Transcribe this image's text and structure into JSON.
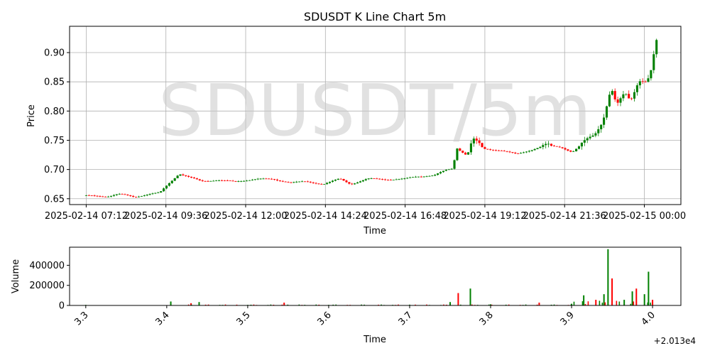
{
  "chart_data": [
    {
      "type": "candlestick",
      "title": "SDUSDT K Line Chart 5m",
      "xlabel": "Time",
      "ylabel": "Price",
      "watermark": "SDUSDT/5m",
      "grid": true,
      "up_color": "#008000",
      "down_color": "#ff0000",
      "ylim": [
        0.64,
        0.945
      ],
      "yticks": [
        0.65,
        0.7,
        0.75,
        0.8,
        0.85,
        0.9
      ],
      "ytick_labels": [
        "0.65",
        "0.70",
        "0.75",
        "0.80",
        "0.85",
        "0.90"
      ],
      "xlim": [
        "2025-02-14 06:42",
        "2025-02-15 01:06"
      ],
      "xticks": [
        "2025-02-14 07:12",
        "2025-02-14 09:36",
        "2025-02-14 12:00",
        "2025-02-14 14:24",
        "2025-02-14 16:48",
        "2025-02-14 19:12",
        "2025-02-14 21:36",
        "2025-02-15 00:00"
      ],
      "xtick_labels": [
        "2025-02-14 07:12",
        "2025-02-14 09:36",
        "2025-02-14 12:00",
        "2025-02-14 14:24",
        "2025-02-14 16:48",
        "2025-02-14 19:12",
        "2025-02-14 21:36",
        "2025-02-15 00:00"
      ],
      "price_keypoints": [
        [
          "2025-02-14 07:12",
          0.655
        ],
        [
          "2025-02-14 07:50",
          0.654
        ],
        [
          "2025-02-14 08:10",
          0.658
        ],
        [
          "2025-02-14 08:40",
          0.653
        ],
        [
          "2025-02-14 09:05",
          0.658
        ],
        [
          "2025-02-14 09:25",
          0.66
        ],
        [
          "2025-02-14 09:40",
          0.675
        ],
        [
          "2025-02-14 10:00",
          0.693
        ],
        [
          "2025-02-14 10:20",
          0.686
        ],
        [
          "2025-02-14 10:40",
          0.68
        ],
        [
          "2025-02-14 11:10",
          0.682
        ],
        [
          "2025-02-14 11:40",
          0.679
        ],
        [
          "2025-02-14 12:20",
          0.684
        ],
        [
          "2025-02-14 12:50",
          0.683
        ],
        [
          "2025-02-14 13:20",
          0.678
        ],
        [
          "2025-02-14 13:50",
          0.679
        ],
        [
          "2025-02-14 14:20",
          0.675
        ],
        [
          "2025-02-14 14:50",
          0.684
        ],
        [
          "2025-02-14 15:10",
          0.675
        ],
        [
          "2025-02-14 15:40",
          0.684
        ],
        [
          "2025-02-14 16:20",
          0.683
        ],
        [
          "2025-02-14 16:48",
          0.684
        ],
        [
          "2025-02-14 17:10",
          0.688
        ],
        [
          "2025-02-14 17:40",
          0.69
        ],
        [
          "2025-02-14 18:00",
          0.698
        ],
        [
          "2025-02-14 18:15",
          0.702
        ],
        [
          "2025-02-14 18:20",
          0.738
        ],
        [
          "2025-02-14 18:40",
          0.724
        ],
        [
          "2025-02-14 18:50",
          0.752
        ],
        [
          "2025-02-14 19:10",
          0.735
        ],
        [
          "2025-02-14 19:40",
          0.733
        ],
        [
          "2025-02-14 20:10",
          0.726
        ],
        [
          "2025-02-14 20:40",
          0.735
        ],
        [
          "2025-02-14 21:00",
          0.741
        ],
        [
          "2025-02-14 21:30",
          0.738
        ],
        [
          "2025-02-14 21:50",
          0.73
        ],
        [
          "2025-02-14 22:10",
          0.745
        ],
        [
          "2025-02-14 22:30",
          0.76
        ],
        [
          "2025-02-14 22:45",
          0.785
        ],
        [
          "2025-02-14 23:00",
          0.84
        ],
        [
          "2025-02-14 23:10",
          0.808
        ],
        [
          "2025-02-14 23:25",
          0.83
        ],
        [
          "2025-02-14 23:35",
          0.818
        ],
        [
          "2025-02-14 23:50",
          0.855
        ],
        [
          "2025-02-15 00:05",
          0.85
        ],
        [
          "2025-02-15 00:15",
          0.875
        ],
        [
          "2025-02-15 00:20",
          0.922
        ],
        [
          "2025-02-15 00:25",
          0.912
        ]
      ]
    },
    {
      "type": "bar",
      "xlabel": "Time",
      "ylabel": "Volume",
      "grid": false,
      "ylim": [
        0,
        580000
      ],
      "yticks": [
        0,
        200000,
        400000
      ],
      "ytick_labels": [
        "0",
        "200000",
        "400000"
      ],
      "xlim": [
        20133.28,
        20134.035
      ],
      "xticks": [
        20133.3,
        20133.4,
        20133.5,
        20133.6,
        20133.7,
        20133.8,
        20133.9,
        20134.0
      ],
      "xtick_labels": [
        "3.3",
        "3.4",
        "3.5",
        "3.6",
        "3.7",
        "3.8",
        "3.9",
        "4.0"
      ],
      "offset_label": "+2.013e4",
      "volume_keypoints": [
        [
          20133.3,
          0.01
        ],
        [
          20133.405,
          0.07
        ],
        [
          20133.43,
          0.04
        ],
        [
          20133.44,
          0.06
        ],
        [
          20133.5,
          0.01
        ],
        [
          20133.545,
          0.05
        ],
        [
          20133.6,
          0.01
        ],
        [
          20133.75,
          0.06
        ],
        [
          20133.76,
          0.22
        ],
        [
          20133.775,
          0.3
        ],
        [
          20133.8,
          0.02
        ],
        [
          20133.86,
          0.05
        ],
        [
          20133.9,
          0.03
        ],
        [
          20133.915,
          0.18
        ],
        [
          20133.93,
          0.1
        ],
        [
          20133.94,
          0.2
        ],
        [
          20133.945,
          1.0
        ],
        [
          20133.95,
          0.48
        ],
        [
          20133.965,
          0.1
        ],
        [
          20133.975,
          0.25
        ],
        [
          20133.98,
          0.3
        ],
        [
          20133.99,
          0.2
        ],
        [
          20133.995,
          0.6
        ],
        [
          20134.0,
          0.1
        ]
      ]
    }
  ]
}
